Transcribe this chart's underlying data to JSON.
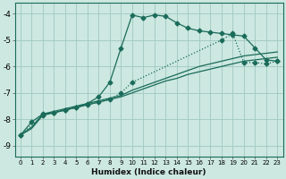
{
  "xlabel": "Humidex (Indice chaleur)",
  "bg_color": "#cce8e0",
  "grid_color": "#a0c8c0",
  "line_color": "#1a6b5a",
  "xlim": [
    -0.5,
    23.5
  ],
  "ylim": [
    -9.4,
    -3.6
  ],
  "yticks": [
    -9,
    -8,
    -7,
    -6,
    -5,
    -4
  ],
  "xticks": [
    0,
    1,
    2,
    3,
    4,
    5,
    6,
    7,
    8,
    9,
    10,
    11,
    12,
    13,
    14,
    15,
    16,
    17,
    18,
    19,
    20,
    21,
    22,
    23
  ],
  "series": [
    {
      "x": [
        0,
        1,
        2,
        3,
        4,
        5,
        6,
        7,
        8,
        9,
        10,
        11,
        12,
        13,
        14,
        15,
        16,
        17,
        18,
        19,
        20,
        21,
        22,
        23
      ],
      "y": [
        -8.6,
        -8.35,
        -7.85,
        -7.75,
        -7.65,
        -7.55,
        -7.45,
        -7.35,
        -7.25,
        -7.15,
        -7.0,
        -6.85,
        -6.7,
        -6.55,
        -6.45,
        -6.3,
        -6.2,
        -6.1,
        -6.0,
        -5.9,
        -5.8,
        -5.75,
        -5.7,
        -5.65
      ],
      "marker": null,
      "markersize": 0,
      "linestyle": "-",
      "linewidth": 0.9
    },
    {
      "x": [
        0,
        1,
        2,
        3,
        4,
        5,
        6,
        7,
        8,
        9,
        10,
        11,
        12,
        13,
        14,
        15,
        16,
        17,
        18,
        19,
        20,
        21,
        22,
        23
      ],
      "y": [
        -8.6,
        -8.3,
        -7.8,
        -7.7,
        -7.6,
        -7.5,
        -7.4,
        -7.3,
        -7.2,
        -7.1,
        -6.9,
        -6.75,
        -6.6,
        -6.45,
        -6.3,
        -6.15,
        -6.0,
        -5.9,
        -5.8,
        -5.7,
        -5.6,
        -5.55,
        -5.5,
        -5.45
      ],
      "marker": null,
      "markersize": 0,
      "linestyle": "-",
      "linewidth": 0.9
    },
    {
      "x": [
        0,
        1,
        2,
        3,
        4,
        5,
        6,
        7,
        8,
        9,
        10,
        11,
        12,
        13,
        14,
        15,
        16,
        17,
        18,
        19,
        20,
        21,
        22,
        23
      ],
      "y": [
        -8.6,
        -8.1,
        -7.8,
        -7.75,
        -7.65,
        -7.55,
        -7.4,
        -7.15,
        -6.6,
        -5.3,
        -4.05,
        -4.15,
        -4.05,
        -4.1,
        -4.35,
        -4.55,
        -4.65,
        -4.7,
        -4.75,
        -4.8,
        -4.85,
        -5.3,
        -5.75,
        -5.8
      ],
      "marker": "D",
      "markersize": 2.5,
      "linestyle": "-",
      "linewidth": 0.9
    },
    {
      "x": [
        0,
        2,
        3,
        4,
        5,
        6,
        7,
        8,
        9,
        10,
        18,
        19,
        20,
        21,
        22,
        23
      ],
      "y": [
        -8.6,
        -7.85,
        -7.75,
        -7.65,
        -7.55,
        -7.45,
        -7.35,
        -7.25,
        -7.0,
        -6.6,
        -5.0,
        -4.75,
        -5.85,
        -5.85,
        -5.9,
        -5.8
      ],
      "marker": "D",
      "markersize": 2.5,
      "linestyle": ":",
      "linewidth": 0.9
    }
  ]
}
